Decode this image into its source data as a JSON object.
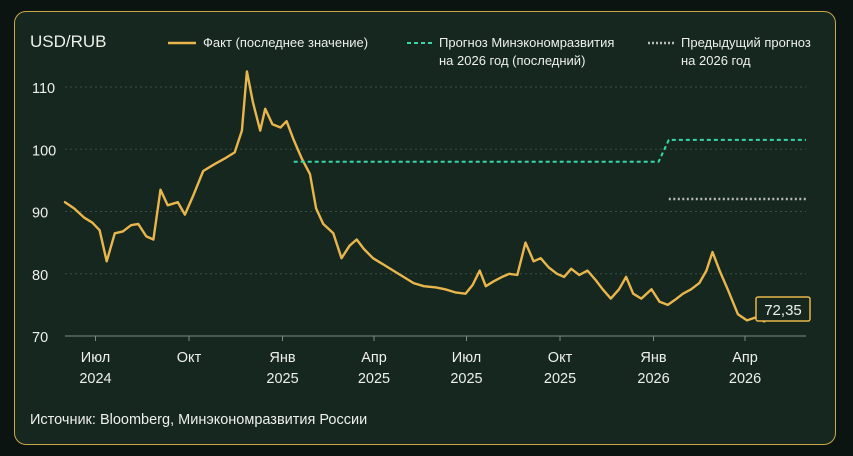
{
  "chart_data": {
    "type": "line",
    "title": "USD/RUB",
    "source": "Источник: Bloomberg, Минэкономразвития России",
    "ylim": [
      70,
      115
    ],
    "yticks": [
      "70",
      "80",
      "90",
      "100",
      "110"
    ],
    "grid": true,
    "legend_position": "top",
    "x_ticks": [
      {
        "month": "Июл",
        "year": "2024",
        "x": "2024-07"
      },
      {
        "month": "Окт",
        "year": "",
        "x": "2024-10"
      },
      {
        "month": "Янв",
        "year": "2025",
        "x": "2025-01"
      },
      {
        "month": "Апр",
        "year": "2025",
        "x": "2025-04"
      },
      {
        "month": "Июл",
        "year": "2025",
        "x": "2025-07"
      },
      {
        "month": "Окт",
        "year": "2025",
        "x": "2025-10"
      },
      {
        "month": "Янв",
        "year": "2026",
        "x": "2026-01"
      },
      {
        "month": "Апр",
        "year": "2026",
        "x": "2026-04"
      }
    ],
    "series": [
      {
        "name": "Факт (последнее значение)",
        "style": "solid",
        "color": "#e8b64c",
        "points": [
          [
            "2024-06-01",
            91.5
          ],
          [
            "2024-06-10",
            90.5
          ],
          [
            "2024-06-20",
            89.0
          ],
          [
            "2024-06-28",
            88.2
          ],
          [
            "2024-07-05",
            87.0
          ],
          [
            "2024-07-12",
            82.0
          ],
          [
            "2024-07-20",
            86.5
          ],
          [
            "2024-07-28",
            86.8
          ],
          [
            "2024-08-05",
            87.8
          ],
          [
            "2024-08-12",
            88.0
          ],
          [
            "2024-08-20",
            86.0
          ],
          [
            "2024-08-27",
            85.5
          ],
          [
            "2024-09-03",
            93.5
          ],
          [
            "2024-09-10",
            91.0
          ],
          [
            "2024-09-20",
            91.5
          ],
          [
            "2024-09-27",
            89.5
          ],
          [
            "2024-10-05",
            92.5
          ],
          [
            "2024-10-15",
            96.5
          ],
          [
            "2024-10-25",
            97.5
          ],
          [
            "2024-11-05",
            98.5
          ],
          [
            "2024-11-15",
            99.5
          ],
          [
            "2024-11-22",
            103.0
          ],
          [
            "2024-11-27",
            112.5
          ],
          [
            "2024-12-03",
            107.5
          ],
          [
            "2024-12-10",
            103.0
          ],
          [
            "2024-12-15",
            106.5
          ],
          [
            "2024-12-22",
            104.0
          ],
          [
            "2024-12-30",
            103.5
          ],
          [
            "2025-01-05",
            104.5
          ],
          [
            "2025-01-12",
            101.5
          ],
          [
            "2025-01-20",
            98.5
          ],
          [
            "2025-01-28",
            96.0
          ],
          [
            "2025-02-03",
            90.5
          ],
          [
            "2025-02-10",
            88.0
          ],
          [
            "2025-02-20",
            86.5
          ],
          [
            "2025-02-28",
            82.5
          ],
          [
            "2025-03-08",
            84.5
          ],
          [
            "2025-03-15",
            85.5
          ],
          [
            "2025-03-22",
            84.0
          ],
          [
            "2025-03-31",
            82.5
          ],
          [
            "2025-04-10",
            81.5
          ],
          [
            "2025-04-20",
            80.5
          ],
          [
            "2025-04-30",
            79.5
          ],
          [
            "2025-05-10",
            78.5
          ],
          [
            "2025-05-20",
            78.0
          ],
          [
            "2025-06-01",
            77.8
          ],
          [
            "2025-06-10",
            77.5
          ],
          [
            "2025-06-20",
            77.0
          ],
          [
            "2025-06-30",
            76.8
          ],
          [
            "2025-07-07",
            78.2
          ],
          [
            "2025-07-14",
            80.5
          ],
          [
            "2025-07-20",
            78.0
          ],
          [
            "2025-07-28",
            78.8
          ],
          [
            "2025-08-05",
            79.5
          ],
          [
            "2025-08-12",
            80.0
          ],
          [
            "2025-08-20",
            79.8
          ],
          [
            "2025-08-28",
            85.0
          ],
          [
            "2025-09-05",
            82.0
          ],
          [
            "2025-09-12",
            82.5
          ],
          [
            "2025-09-20",
            81.0
          ],
          [
            "2025-09-28",
            80.0
          ],
          [
            "2025-10-05",
            79.5
          ],
          [
            "2025-10-12",
            80.8
          ],
          [
            "2025-10-20",
            79.8
          ],
          [
            "2025-10-28",
            80.5
          ],
          [
            "2025-11-05",
            79.0
          ],
          [
            "2025-11-12",
            77.5
          ],
          [
            "2025-11-20",
            76.0
          ],
          [
            "2025-11-28",
            77.5
          ],
          [
            "2025-12-05",
            79.5
          ],
          [
            "2025-12-12",
            76.8
          ],
          [
            "2025-12-20",
            76.0
          ],
          [
            "2025-12-30",
            77.5
          ],
          [
            "2026-01-07",
            75.5
          ],
          [
            "2026-01-15",
            75.0
          ],
          [
            "2026-01-22",
            75.8
          ],
          [
            "2026-01-30",
            76.8
          ],
          [
            "2026-02-07",
            77.5
          ],
          [
            "2026-02-15",
            78.5
          ],
          [
            "2026-02-22",
            80.5
          ],
          [
            "2026-02-28",
            83.5
          ],
          [
            "2026-03-07",
            80.5
          ],
          [
            "2026-03-15",
            77.5
          ],
          [
            "2026-03-25",
            73.5
          ],
          [
            "2026-04-03",
            72.5
          ],
          [
            "2026-04-12",
            73.0
          ],
          [
            "2026-04-20",
            72.35
          ]
        ]
      },
      {
        "name": "Прогноз Минэкономразвития на 2026 год (последний)",
        "style": "dashed",
        "color": "#3ad6a8",
        "points": [
          [
            "2025-01-12",
            98.0
          ],
          [
            "2026-01-06",
            98.0
          ],
          [
            "2026-01-16",
            101.5
          ],
          [
            "2026-05-31",
            101.5
          ]
        ]
      },
      {
        "name": "Предыдущий прогноз на 2026 год",
        "style": "dotted",
        "color": "#b8bab6",
        "points": [
          [
            "2026-01-16",
            92.0
          ],
          [
            "2026-05-31",
            92.0
          ]
        ]
      }
    ],
    "legend": [
      {
        "line1": "Факт (последнее значение)",
        "line2": "",
        "style": "solid",
        "color": "#e8b64c"
      },
      {
        "line1": "Прогноз Минэкономразвития",
        "line2": "на 2026 год (последний)",
        "style": "dashed",
        "color": "#3ad6a8"
      },
      {
        "line1": "Предыдущий прогноз",
        "line2": "на 2026 год",
        "style": "dotted",
        "color": "#b8bab6"
      }
    ],
    "last_value_label": "72,35"
  }
}
